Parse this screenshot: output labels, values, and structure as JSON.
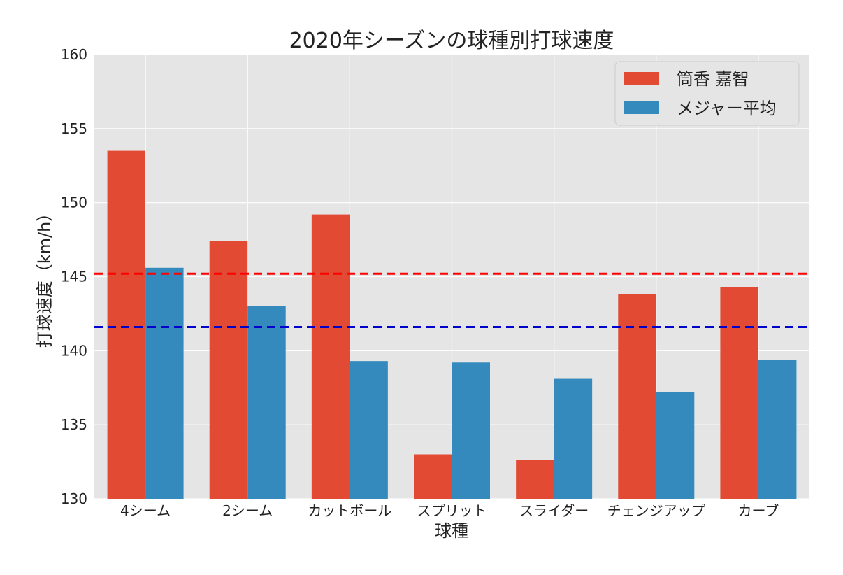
{
  "chart_data": {
    "type": "bar",
    "title": "2020年シーズンの球種別打球速度",
    "xlabel": "球種",
    "ylabel": "打球速度（km/h）",
    "categories": [
      "4シーム",
      "2シーム",
      "カットボール",
      "スプリット",
      "スライダー",
      "チェンジアップ",
      "カーブ"
    ],
    "series": [
      {
        "name": "筒香 嘉智",
        "color": "#E24A33",
        "values": [
          153.5,
          147.4,
          149.2,
          133.0,
          132.6,
          143.8,
          144.3
        ]
      },
      {
        "name": "メジャー平均",
        "color": "#348ABD",
        "values": [
          145.6,
          143.0,
          139.3,
          139.2,
          138.1,
          137.2,
          139.4
        ]
      }
    ],
    "reference_lines": [
      {
        "value": 145.2,
        "color": "#FF0000",
        "style": "dashed"
      },
      {
        "value": 141.6,
        "color": "#0000CC",
        "style": "dashed"
      }
    ],
    "ylim": [
      130,
      160
    ],
    "yticks": [
      130,
      135,
      140,
      145,
      150,
      155,
      160
    ],
    "grid": true,
    "legend_position": "top-right",
    "plot_background": "#E5E5E5"
  }
}
